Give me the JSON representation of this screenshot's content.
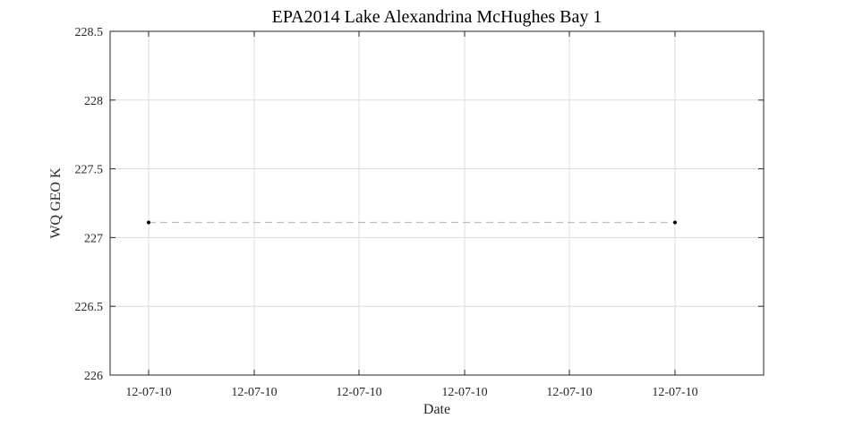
{
  "chart_data": {
    "type": "line",
    "title": "EPA2014 Lake Alexandrina McHughes Bay 1",
    "xlabel": "Date",
    "ylabel": "WQ GEO K",
    "x_tick_labels": [
      "12-07-10",
      "12-07-10",
      "12-07-10",
      "12-07-10",
      "12-07-10",
      "12-07-10"
    ],
    "y_tick_labels": [
      "226",
      "226.5",
      "227",
      "227.5",
      "228",
      "228.5"
    ],
    "y_ticks": [
      226,
      226.5,
      227,
      227.5,
      228,
      228.5
    ],
    "ylim": [
      226,
      228.5
    ],
    "grid": true,
    "series": [
      {
        "points": [
          {
            "x": "2012-07-10",
            "y": 227.11
          },
          {
            "x": "2012-07-10",
            "y": 227.11
          }
        ],
        "color": "#bdbdbd",
        "marker_color": "#000000",
        "line_style": "dashed"
      }
    ]
  }
}
